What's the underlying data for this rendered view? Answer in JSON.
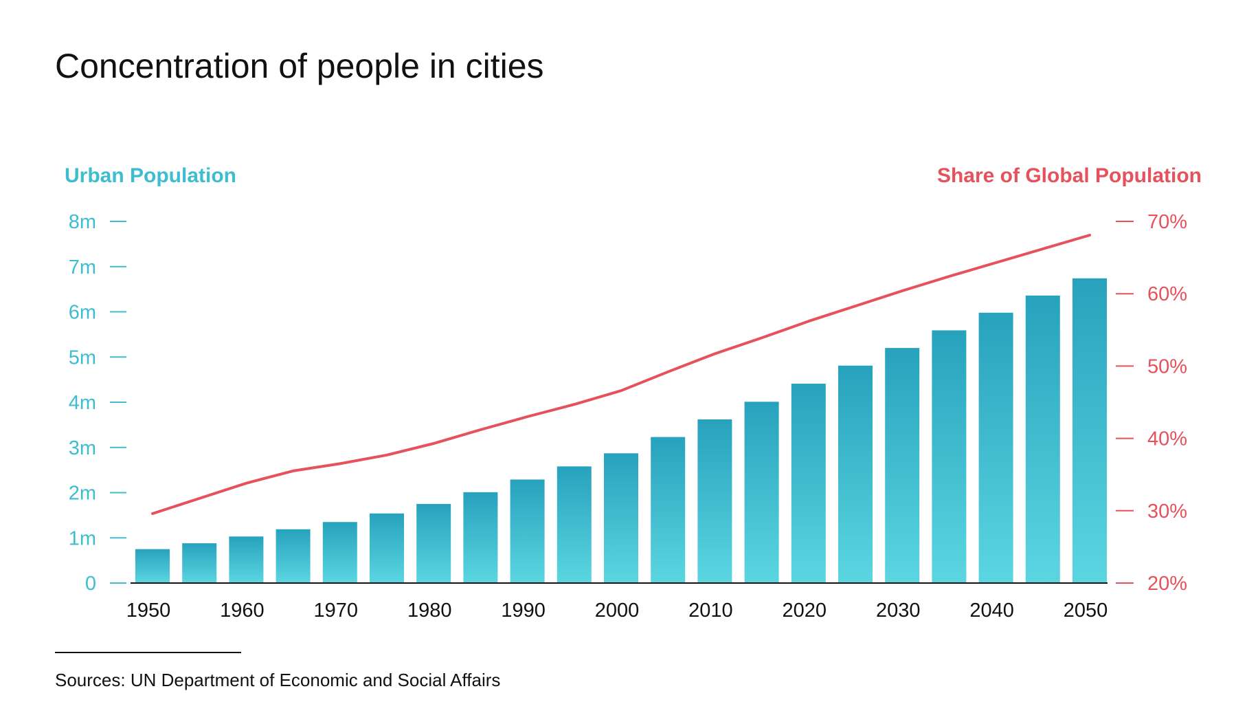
{
  "title": "Concentration of people in cities",
  "source": "Sources: UN Department of Economic and Social Affairs",
  "colors": {
    "bar_top": "#27a2bd",
    "bar_bottom": "#5bd6e1",
    "left_axis": "#3dbdcd",
    "right_axis": "#e5525c",
    "line": "#e5525c",
    "text": "#111111"
  },
  "chart_data": {
    "type": "bar",
    "title": "Concentration of people in cities",
    "categories": [
      "1950",
      "1955",
      "1960",
      "1965",
      "1970",
      "1975",
      "1980",
      "1985",
      "1990",
      "1995",
      "2000",
      "2005",
      "2010",
      "2015",
      "2020",
      "2025",
      "2030",
      "2035",
      "2040",
      "2045",
      "2050"
    ],
    "x_tick_labels": [
      "1950",
      "1960",
      "1970",
      "1980",
      "1990",
      "2000",
      "2010",
      "2020",
      "2030",
      "2040",
      "2050"
    ],
    "grid": false,
    "legend": "none",
    "left_axis": {
      "label": "Urban Population",
      "range": [
        0,
        8
      ],
      "ticks": [
        0,
        1,
        2,
        3,
        4,
        5,
        6,
        7,
        8
      ],
      "tick_labels": [
        "0",
        "1m",
        "2m",
        "3m",
        "4m",
        "5m",
        "6m",
        "7m",
        "8m"
      ]
    },
    "right_axis": {
      "label": "Share of Global Population",
      "range": [
        20,
        70
      ],
      "ticks": [
        20,
        30,
        40,
        50,
        60,
        70
      ],
      "tick_labels": [
        "20%",
        "30%",
        "40%",
        "50%",
        "60%",
        "70%"
      ]
    },
    "series": [
      {
        "type": "bar",
        "axis": "left",
        "values": [
          0.75,
          0.88,
          1.03,
          1.19,
          1.35,
          1.54,
          1.75,
          2.01,
          2.29,
          2.58,
          2.87,
          3.23,
          3.62,
          4.01,
          4.41,
          4.81,
          5.2,
          5.59,
          5.98,
          6.36,
          6.74
        ]
      },
      {
        "type": "line",
        "axis": "right",
        "values": [
          29.6,
          31.7,
          33.8,
          35.5,
          36.5,
          37.7,
          39.3,
          41.2,
          43.0,
          44.7,
          46.6,
          49.2,
          51.7,
          53.9,
          56.2,
          58.3,
          60.4,
          62.4,
          64.3,
          66.2,
          68.1
        ]
      }
    ]
  }
}
